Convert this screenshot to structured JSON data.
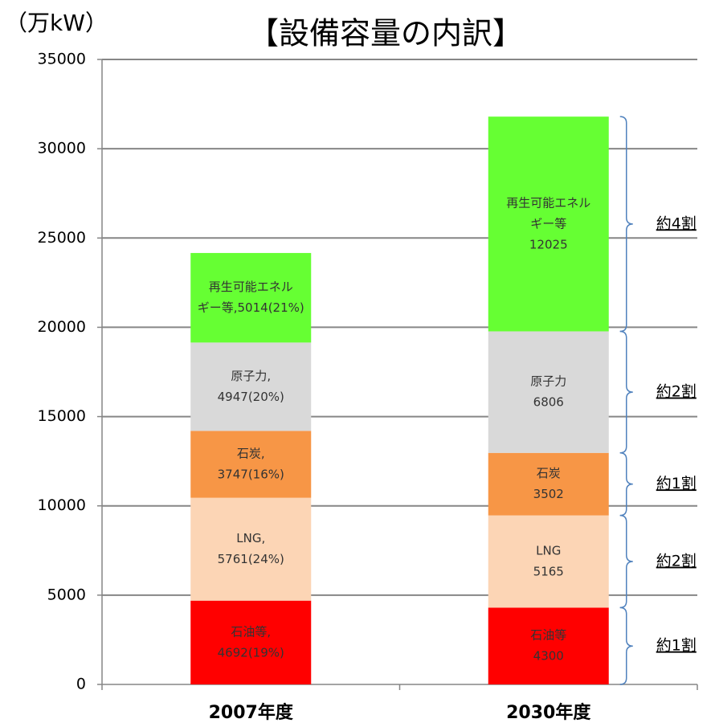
{
  "chart_data": {
    "type": "stacked_bar",
    "title": "【設備容量の内訳】",
    "y_label": "（万kW）",
    "categories": [
      "2007年度",
      "2030年度"
    ],
    "series": [
      {
        "color": "#ff0000",
        "values": [
          4692,
          4300
        ],
        "value_labels": [
          [
            "石油等,",
            "4692(19%)"
          ],
          [
            "石油等",
            "4300"
          ]
        ]
      },
      {
        "color": "#fcd5b5",
        "values": [
          5761,
          5165
        ],
        "value_labels": [
          [
            "LNG,",
            "5761(24%)"
          ],
          [
            "LNG",
            "5165"
          ]
        ]
      },
      {
        "color": "#f79646",
        "values": [
          3747,
          3502
        ],
        "value_labels": [
          [
            "石炭,",
            "3747(16%)"
          ],
          [
            "石炭",
            "3502"
          ]
        ]
      },
      {
        "color": "#d9d9d9",
        "values": [
          4947,
          6806
        ],
        "value_labels": [
          [
            "原子力,",
            "4947(20%)"
          ],
          [
            "原子力",
            "6806"
          ]
        ]
      },
      {
        "color": "#66ff33",
        "values": [
          5014,
          12025
        ],
        "value_labels": [
          [
            "再生可能エネル",
            "ギー等,5014(21%)"
          ],
          [
            "再生可能エネル",
            "ギー等",
            "12025"
          ]
        ]
      }
    ],
    "annotations": [
      "約1割",
      "約2割",
      "約1割",
      "約2割",
      "約4割"
    ],
    "ylim": [
      0,
      35000
    ],
    "yticks": [
      0,
      5000,
      10000,
      15000,
      20000,
      25000,
      30000,
      35000
    ],
    "grid": true
  }
}
